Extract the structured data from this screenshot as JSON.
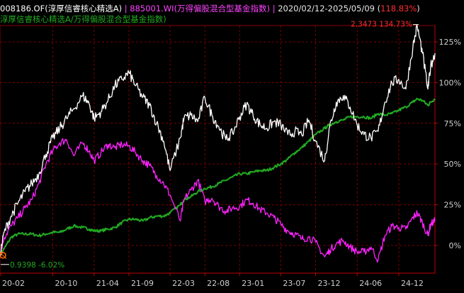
{
  "header": {
    "fund_label": "008186.OF(淳厚信睿核心精选A)",
    "separator": "|",
    "index_label": "885001.WI(万得偏股混合型基金指数)",
    "date_range": "2020/02/12-2025/05/09",
    "paren_open": "(",
    "range_return": "118.83%",
    "paren_close": ")",
    "excess_label": "淳厚信睿核心精选A/万得偏股混合型基金指数)"
  },
  "colors": {
    "fund": "#ffffff",
    "index": "#ff22ff",
    "excess": "#22aa22",
    "grid": "#7a0000",
    "axis": "#c00000",
    "max_label": "#ff3030",
    "min_label": "#22aa22"
  },
  "annotations": {
    "max_label": "2.3473 134.73%",
    "min_label": "0.9398 -6.02%"
  },
  "chart_data": {
    "type": "line",
    "x_range": [
      "2020-02-12",
      "2025-05-09"
    ],
    "y_unit": "%",
    "ylim": [
      -17,
      135
    ],
    "y_ticks": [
      0,
      25,
      50,
      75,
      100,
      125
    ],
    "y_tick_labels": [
      "0%",
      "25%",
      "50%",
      "75%",
      "100%",
      "125%"
    ],
    "x_ticks": [
      "2020-02",
      "2020-10",
      "2021-04",
      "2021-09",
      "2022-03",
      "2022-08",
      "2023-01",
      "2023-07",
      "2023-12",
      "2024-06",
      "2024-12"
    ],
    "x_tick_labels": [
      "20-02",
      "20-10",
      "21-04",
      "21-09",
      "22-03",
      "22-08",
      "23-01",
      "23-07",
      "23-12",
      "24-06",
      "24-12"
    ],
    "grid": true,
    "max_point": {
      "date": "2025-02-20",
      "nav": 2.3473,
      "pct": 134.73
    },
    "min_point": {
      "date": "2020-02-12",
      "nav": 0.9398,
      "pct": -6.02
    },
    "series": [
      {
        "name": "008186.OF(淳厚信睿核心精选A)",
        "x": [
          "2020-02-12",
          "2020-03-01",
          "2020-04-01",
          "2020-05-01",
          "2020-06-01",
          "2020-07-01",
          "2020-08-01",
          "2020-09-01",
          "2020-10-01",
          "2020-11-01",
          "2020-12-01",
          "2021-01-01",
          "2021-02-10",
          "2021-03-10",
          "2021-04-01",
          "2021-05-01",
          "2021-06-01",
          "2021-07-01",
          "2021-08-01",
          "2021-09-01",
          "2021-10-01",
          "2021-11-01",
          "2021-12-01",
          "2022-01-01",
          "2022-02-01",
          "2022-03-01",
          "2022-04-15",
          "2022-05-01",
          "2022-06-01",
          "2022-07-01",
          "2022-08-01",
          "2022-09-01",
          "2022-10-01",
          "2022-11-01",
          "2022-12-01",
          "2023-01-01",
          "2023-02-01",
          "2023-03-01",
          "2023-04-01",
          "2023-05-01",
          "2023-06-01",
          "2023-07-01",
          "2023-08-01",
          "2023-09-01",
          "2023-10-01",
          "2023-11-01",
          "2023-12-01",
          "2024-01-10",
          "2024-02-01",
          "2024-03-01",
          "2024-04-01",
          "2024-05-01",
          "2024-06-01",
          "2024-07-01",
          "2024-08-01",
          "2024-09-01",
          "2024-10-01",
          "2024-11-01",
          "2024-12-01",
          "2025-01-01",
          "2025-02-01",
          "2025-02-20",
          "2025-03-15",
          "2025-04-08",
          "2025-04-20",
          "2025-05-09"
        ],
        "values": [
          -6,
          8,
          18,
          26,
          33,
          38,
          44,
          56,
          66,
          72,
          78,
          84,
          92,
          87,
          78,
          82,
          89,
          98,
          102,
          106,
          98,
          91,
          86,
          75,
          64,
          46,
          66,
          78,
          80,
          76,
          91,
          80,
          73,
          65,
          69,
          79,
          87,
          80,
          74,
          72,
          76,
          74,
          68,
          70,
          68,
          77,
          64,
          52,
          73,
          88,
          92,
          85,
          74,
          68,
          66,
          70,
          88,
          100,
          102,
          96,
          122,
          134.7,
          118,
          96,
          110,
          118
        ]
      },
      {
        "name": "885001.WI(万得偏股混合型基金指数)",
        "x": [
          "2020-02-12",
          "2020-03-01",
          "2020-04-01",
          "2020-05-01",
          "2020-06-01",
          "2020-07-01",
          "2020-08-01",
          "2020-09-01",
          "2020-10-01",
          "2020-11-01",
          "2020-12-01",
          "2021-01-01",
          "2021-02-10",
          "2021-03-10",
          "2021-04-01",
          "2021-05-01",
          "2021-06-01",
          "2021-07-01",
          "2021-08-01",
          "2021-09-01",
          "2021-10-01",
          "2021-11-01",
          "2021-12-01",
          "2022-01-01",
          "2022-02-01",
          "2022-03-01",
          "2022-04-15",
          "2022-05-01",
          "2022-06-01",
          "2022-07-01",
          "2022-08-01",
          "2022-09-01",
          "2022-10-01",
          "2022-11-01",
          "2022-12-01",
          "2023-01-01",
          "2023-02-01",
          "2023-03-01",
          "2023-04-01",
          "2023-05-01",
          "2023-06-01",
          "2023-07-01",
          "2023-08-01",
          "2023-09-01",
          "2023-10-01",
          "2023-11-01",
          "2023-12-01",
          "2024-01-10",
          "2024-02-01",
          "2024-03-01",
          "2024-04-01",
          "2024-05-01",
          "2024-06-01",
          "2024-07-01",
          "2024-08-01",
          "2024-09-01",
          "2024-10-01",
          "2024-11-01",
          "2024-12-01",
          "2025-01-01",
          "2025-02-01",
          "2025-02-20",
          "2025-03-15",
          "2025-04-08",
          "2025-04-20",
          "2025-05-09"
        ],
        "values": [
          -6,
          5,
          12,
          17,
          23,
          28,
          38,
          50,
          58,
          63,
          65,
          55,
          63,
          58,
          52,
          57,
          62,
          60,
          62,
          61,
          57,
          52,
          49,
          43,
          38,
          31,
          15,
          28,
          34,
          40,
          27,
          29,
          24,
          21,
          23,
          24,
          28,
          26,
          22,
          20,
          17,
          13,
          9,
          7,
          4,
          5,
          2,
          -7,
          -3,
          1,
          3,
          -1,
          -4,
          -4,
          -1,
          -9,
          6,
          12,
          11,
          10,
          17,
          20,
          14,
          6,
          13,
          15
        ]
      },
      {
        "name": "淳厚信睿核心精选A/万得偏股混合型基金指数",
        "x": [
          "2020-02-12",
          "2020-03-01",
          "2020-04-01",
          "2020-05-01",
          "2020-06-01",
          "2020-07-01",
          "2020-08-01",
          "2020-09-01",
          "2020-10-01",
          "2020-11-01",
          "2020-12-01",
          "2021-01-01",
          "2021-02-10",
          "2021-03-10",
          "2021-04-01",
          "2021-05-01",
          "2021-06-01",
          "2021-07-01",
          "2021-08-01",
          "2021-09-01",
          "2021-10-01",
          "2021-11-01",
          "2021-12-01",
          "2022-01-01",
          "2022-02-01",
          "2022-03-01",
          "2022-04-15",
          "2022-05-01",
          "2022-06-01",
          "2022-07-01",
          "2022-08-01",
          "2022-09-01",
          "2022-10-01",
          "2022-11-01",
          "2022-12-01",
          "2023-01-01",
          "2023-02-01",
          "2023-03-01",
          "2023-04-01",
          "2023-05-01",
          "2023-06-01",
          "2023-07-01",
          "2023-08-01",
          "2023-09-01",
          "2023-10-01",
          "2023-11-01",
          "2023-12-01",
          "2024-01-10",
          "2024-02-01",
          "2024-03-01",
          "2024-04-01",
          "2024-05-01",
          "2024-06-01",
          "2024-07-01",
          "2024-08-01",
          "2024-09-01",
          "2024-10-01",
          "2024-11-01",
          "2024-12-01",
          "2025-01-01",
          "2025-02-01",
          "2025-02-20",
          "2025-03-15",
          "2025-04-08",
          "2025-04-20",
          "2025-05-09"
        ],
        "values": [
          -6,
          -2,
          5,
          7,
          7,
          7,
          6,
          7,
          8,
          8,
          10,
          12,
          11,
          10,
          9,
          9,
          10,
          11,
          14,
          16,
          16,
          15,
          17,
          18,
          18,
          20,
          25,
          28,
          30,
          33,
          35,
          36,
          38,
          40,
          42,
          44,
          44,
          45,
          46,
          46,
          48,
          50,
          53,
          57,
          60,
          64,
          68,
          72,
          74,
          76,
          77,
          79,
          79,
          79,
          78,
          81,
          80,
          81,
          83,
          85,
          88,
          90,
          89,
          86,
          88,
          90
        ]
      }
    ]
  }
}
